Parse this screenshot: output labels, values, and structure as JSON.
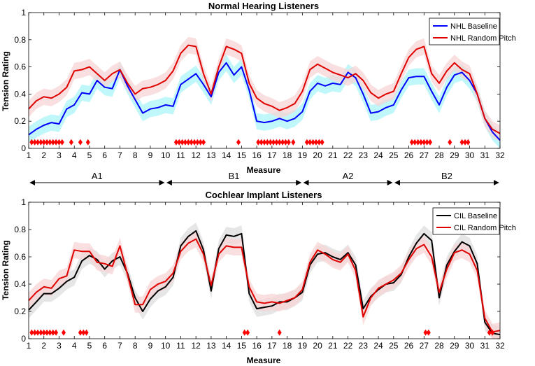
{
  "figure": {
    "section_labels": [
      "A1",
      "B1",
      "A2",
      "B2"
    ],
    "section_ranges": [
      [
        1,
        10
      ],
      [
        10,
        19
      ],
      [
        19,
        25
      ],
      [
        25,
        32
      ]
    ]
  },
  "chart_data": [
    {
      "type": "line",
      "title": "Normal Hearing Listeners",
      "xlabel": "Measure",
      "ylabel": "Tension Rating",
      "xlim": [
        1,
        32
      ],
      "ylim": [
        0,
        1
      ],
      "xticks": [
        "1",
        "2",
        "3",
        "4",
        "5",
        "6",
        "7",
        "8",
        "9",
        "10",
        "11",
        "12",
        "13",
        "14",
        "15",
        "16",
        "17",
        "18",
        "19",
        "20",
        "21",
        "22",
        "23",
        "24",
        "25",
        "26",
        "27",
        "28",
        "29",
        "30",
        "31",
        "32"
      ],
      "yticks": [
        "0",
        "0.2",
        "0.4",
        "0.6",
        "0.8",
        "1"
      ],
      "legend_position": "top-right",
      "series": [
        {
          "name": "NHL Baseline",
          "color": "#0000ff",
          "band_color": "#aaf4f8",
          "band_halfwidth": 0.06,
          "x": [
            1,
            1.5,
            2,
            2.5,
            3,
            3.5,
            4,
            4.5,
            5,
            5.5,
            6,
            6.5,
            7,
            7.5,
            8,
            8.5,
            9,
            9.5,
            10,
            10.5,
            11,
            11.5,
            12,
            12.5,
            13,
            13.5,
            14,
            14.5,
            15,
            15.5,
            16,
            16.5,
            17,
            17.5,
            18,
            18.5,
            19,
            19.5,
            20,
            20.5,
            21,
            21.5,
            22,
            22.5,
            23,
            23.5,
            24,
            24.5,
            25,
            25.5,
            26,
            26.5,
            27,
            27.5,
            28,
            28.5,
            29,
            29.5,
            30,
            30.5,
            31,
            31.5,
            32
          ],
          "y": [
            0.1,
            0.14,
            0.17,
            0.19,
            0.18,
            0.29,
            0.32,
            0.41,
            0.4,
            0.5,
            0.45,
            0.44,
            0.58,
            0.46,
            0.36,
            0.26,
            0.29,
            0.3,
            0.32,
            0.31,
            0.47,
            0.51,
            0.55,
            0.47,
            0.38,
            0.56,
            0.63,
            0.54,
            0.6,
            0.43,
            0.2,
            0.19,
            0.2,
            0.22,
            0.2,
            0.22,
            0.27,
            0.42,
            0.48,
            0.46,
            0.48,
            0.47,
            0.56,
            0.52,
            0.4,
            0.26,
            0.27,
            0.3,
            0.32,
            0.43,
            0.52,
            0.53,
            0.53,
            0.42,
            0.32,
            0.45,
            0.54,
            0.56,
            0.5,
            0.4,
            0.22,
            0.12,
            0.06
          ]
        },
        {
          "name": "NHL Random Pitch",
          "color": "#e00000",
          "band_color": "#f7d4d4",
          "band_halfwidth": 0.06,
          "x": [
            1,
            1.5,
            2,
            2.5,
            3,
            3.5,
            4,
            4.5,
            5,
            5.5,
            6,
            6.5,
            7,
            7.5,
            8,
            8.5,
            9,
            9.5,
            10,
            10.5,
            11,
            11.5,
            12,
            12.5,
            13,
            13.5,
            14,
            14.5,
            15,
            15.5,
            16,
            16.5,
            17,
            17.5,
            18,
            18.5,
            19,
            19.5,
            20,
            20.5,
            21,
            21.5,
            22,
            22.5,
            23,
            23.5,
            24,
            24.5,
            25,
            25.5,
            26,
            26.5,
            27,
            27.5,
            28,
            28.5,
            29,
            29.5,
            30,
            30.5,
            31,
            31.5,
            32
          ],
          "y": [
            0.29,
            0.35,
            0.38,
            0.37,
            0.4,
            0.45,
            0.57,
            0.58,
            0.6,
            0.55,
            0.5,
            0.55,
            0.58,
            0.48,
            0.4,
            0.44,
            0.45,
            0.47,
            0.5,
            0.57,
            0.7,
            0.76,
            0.75,
            0.55,
            0.4,
            0.6,
            0.75,
            0.73,
            0.7,
            0.48,
            0.37,
            0.33,
            0.31,
            0.28,
            0.3,
            0.33,
            0.42,
            0.58,
            0.62,
            0.59,
            0.56,
            0.54,
            0.52,
            0.55,
            0.5,
            0.41,
            0.37,
            0.4,
            0.42,
            0.55,
            0.67,
            0.73,
            0.75,
            0.55,
            0.48,
            0.57,
            0.63,
            0.58,
            0.55,
            0.4,
            0.22,
            0.14,
            0.11
          ]
        }
      ],
      "significance_markers": {
        "color": "#ff0000",
        "y": 0.045,
        "x": [
          1.2,
          1.4,
          1.6,
          1.8,
          2.0,
          2.2,
          2.4,
          2.6,
          2.8,
          3.0,
          3.2,
          3.8,
          4.4,
          4.9,
          10.7,
          10.9,
          11.1,
          11.3,
          11.5,
          11.7,
          11.9,
          12.1,
          12.3,
          12.5,
          14.8,
          16.1,
          16.3,
          16.5,
          16.7,
          16.9,
          17.1,
          17.3,
          17.5,
          17.7,
          17.9,
          18.1,
          18.4,
          19.3,
          19.5,
          19.7,
          19.9,
          20.1,
          20.3,
          26.2,
          26.4,
          26.6,
          26.8,
          27.0,
          27.2,
          27.4,
          28.7,
          29.5,
          29.7,
          29.9
        ]
      }
    },
    {
      "type": "line",
      "title": "Cochlear Implant Listeners",
      "xlabel": "Measure",
      "ylabel": "Tension Rating",
      "xlim": [
        1,
        32
      ],
      "ylim": [
        0,
        1
      ],
      "xticks": [
        "1",
        "2",
        "3",
        "4",
        "5",
        "6",
        "7",
        "8",
        "9",
        "10",
        "11",
        "12",
        "13",
        "14",
        "15",
        "16",
        "17",
        "18",
        "19",
        "20",
        "21",
        "22",
        "23",
        "24",
        "25",
        "26",
        "27",
        "28",
        "29",
        "30",
        "31",
        "32"
      ],
      "yticks": [
        "0",
        "0.2",
        "0.4",
        "0.6",
        "0.8",
        "1"
      ],
      "legend_position": "top-right",
      "series": [
        {
          "name": "CIL Baseline",
          "color": "#000000",
          "band_color": "#dddddd",
          "band_halfwidth": 0.06,
          "x": [
            1,
            1.5,
            2,
            2.5,
            3,
            3.5,
            4,
            4.5,
            5,
            5.5,
            6,
            6.5,
            7,
            7.5,
            8,
            8.5,
            9,
            9.5,
            10,
            10.5,
            11,
            11.5,
            12,
            12.5,
            13,
            13.5,
            14,
            14.5,
            15,
            15.5,
            16,
            16.5,
            17,
            17.5,
            18,
            18.5,
            19,
            19.5,
            20,
            20.5,
            21,
            21.5,
            22,
            22.5,
            23,
            23.5,
            24,
            24.5,
            25,
            25.5,
            26,
            26.5,
            27,
            27.5,
            28,
            28.5,
            29,
            29.5,
            30,
            30.5,
            31,
            31.5,
            32
          ],
          "y": [
            0.21,
            0.27,
            0.33,
            0.33,
            0.37,
            0.42,
            0.45,
            0.57,
            0.61,
            0.58,
            0.51,
            0.57,
            0.6,
            0.48,
            0.3,
            0.2,
            0.29,
            0.35,
            0.38,
            0.45,
            0.68,
            0.75,
            0.79,
            0.65,
            0.35,
            0.66,
            0.76,
            0.75,
            0.77,
            0.33,
            0.22,
            0.23,
            0.24,
            0.27,
            0.27,
            0.3,
            0.34,
            0.54,
            0.62,
            0.63,
            0.6,
            0.58,
            0.63,
            0.54,
            0.22,
            0.31,
            0.36,
            0.4,
            0.41,
            0.47,
            0.6,
            0.7,
            0.77,
            0.72,
            0.3,
            0.54,
            0.64,
            0.71,
            0.68,
            0.55,
            0.12,
            0.04,
            0.03
          ]
        },
        {
          "name": "CIL Random Pitch",
          "color": "#e00000",
          "band_color": "#f7d4d4",
          "band_halfwidth": 0.06,
          "x": [
            1,
            1.5,
            2,
            2.5,
            3,
            3.5,
            4,
            4.5,
            5,
            5.5,
            6,
            6.5,
            7,
            7.5,
            8,
            8.5,
            9,
            9.5,
            10,
            10.5,
            11,
            11.5,
            12,
            12.5,
            13,
            13.5,
            14,
            14.5,
            15,
            15.5,
            16,
            16.5,
            17,
            17.5,
            18,
            18.5,
            19,
            19.5,
            20,
            20.5,
            21,
            21.5,
            22,
            22.5,
            23,
            23.5,
            24,
            24.5,
            25,
            25.5,
            26,
            26.5,
            27,
            27.5,
            28,
            28.5,
            29,
            29.5,
            30,
            30.5,
            31,
            31.5,
            32
          ],
          "y": [
            0.28,
            0.34,
            0.38,
            0.37,
            0.44,
            0.46,
            0.65,
            0.64,
            0.64,
            0.56,
            0.55,
            0.53,
            0.68,
            0.47,
            0.25,
            0.25,
            0.36,
            0.4,
            0.42,
            0.48,
            0.64,
            0.7,
            0.73,
            0.62,
            0.39,
            0.62,
            0.68,
            0.67,
            0.67,
            0.38,
            0.27,
            0.26,
            0.27,
            0.26,
            0.28,
            0.3,
            0.36,
            0.56,
            0.65,
            0.62,
            0.58,
            0.56,
            0.62,
            0.5,
            0.16,
            0.3,
            0.37,
            0.4,
            0.43,
            0.48,
            0.58,
            0.66,
            0.69,
            0.6,
            0.34,
            0.51,
            0.63,
            0.65,
            0.62,
            0.5,
            0.15,
            0.05,
            0.06
          ]
        }
      ],
      "significance_markers": {
        "color": "#ff0000",
        "y": 0.045,
        "x": [
          1.2,
          1.4,
          1.6,
          1.8,
          2.0,
          2.2,
          2.4,
          2.6,
          2.8,
          3.3,
          4.4,
          4.6,
          4.8,
          15.2,
          15.4,
          17.5,
          27.1,
          27.3,
          31.3,
          31.5
        ]
      }
    }
  ]
}
